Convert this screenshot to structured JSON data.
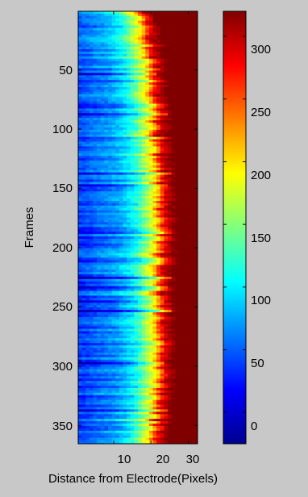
{
  "colors": {
    "figure_background": "#c8c8c8",
    "axes_box": "#000000"
  },
  "chart_data": {
    "type": "heatmap",
    "colormap": "jet",
    "xlabel": "Distance from Electrode(Pixels)",
    "ylabel": "Frames",
    "xlim": [
      1,
      32
    ],
    "ylim": [
      1,
      365
    ],
    "y_reversed": true,
    "x_ticks": [
      10,
      20,
      30
    ],
    "y_ticks": [
      50,
      100,
      150,
      200,
      250,
      300,
      350
    ],
    "x_tick_labels": [
      "10",
      "20",
      "30"
    ],
    "y_tick_labels": [
      "50",
      "100",
      "150",
      "200",
      "250",
      "300",
      "350"
    ],
    "colorbar": {
      "clim": [
        -25,
        320
      ],
      "ticks": [
        0,
        50,
        100,
        150,
        200,
        250,
        300
      ],
      "tick_labels": [
        "0",
        "50",
        "100",
        "150",
        "200",
        "250",
        "300"
      ]
    },
    "boundary_profile": {
      "frames": [
        1,
        50,
        100,
        150,
        200,
        250,
        300,
        350,
        365
      ],
      "saturation_distance": [
        19,
        21,
        22,
        23,
        23.5,
        23,
        23,
        22,
        22
      ]
    },
    "value_profile": {
      "distance": [
        1,
        5,
        10,
        15,
        20,
        22,
        25,
        32
      ],
      "value": [
        40,
        55,
        70,
        110,
        200,
        280,
        320,
        320
      ]
    }
  }
}
